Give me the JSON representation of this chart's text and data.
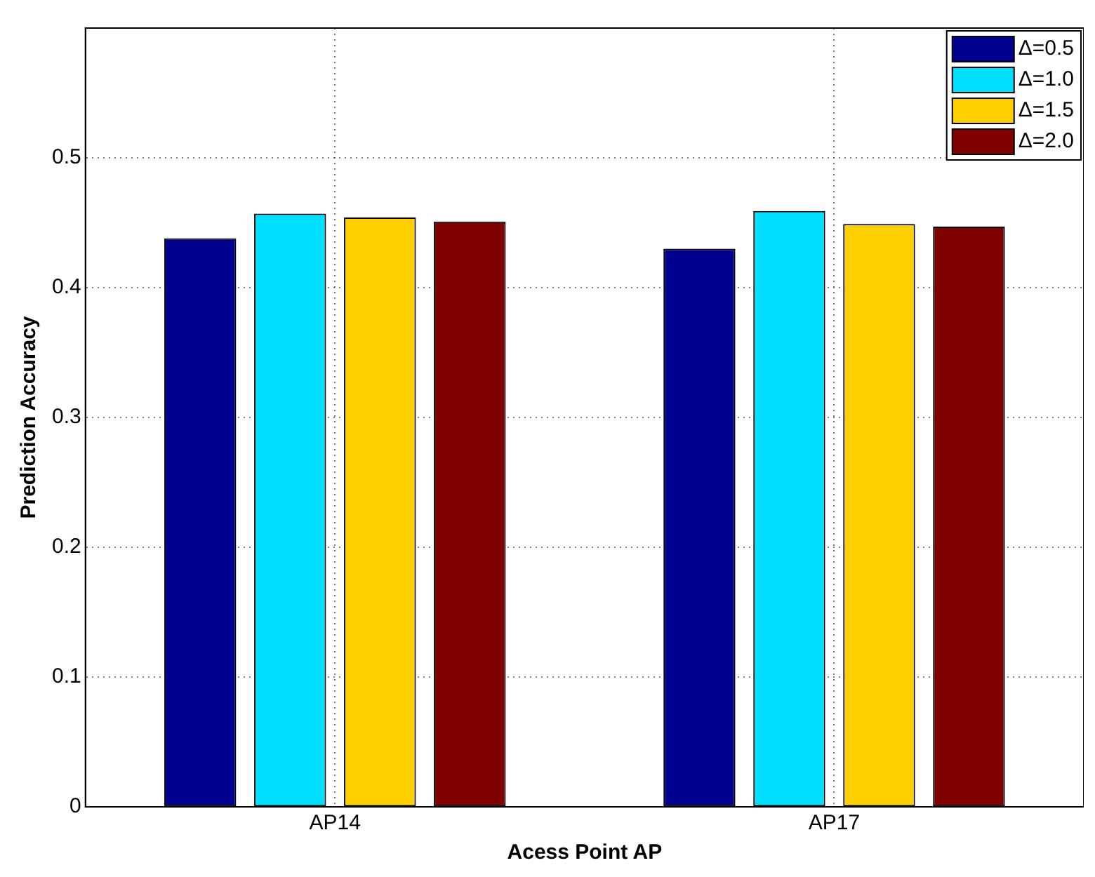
{
  "chart_data": {
    "type": "bar",
    "xlabel": "Acess Point AP",
    "ylabel": "Prediction Accuracy",
    "categories": [
      "AP14",
      "AP17"
    ],
    "series": [
      {
        "name": "Δ=0.5",
        "color": "#00008f",
        "values": [
          0.438,
          0.43
        ]
      },
      {
        "name": "Δ=1.0",
        "color": "#00dfff",
        "values": [
          0.457,
          0.459
        ]
      },
      {
        "name": "Δ=1.5",
        "color": "#ffcf00",
        "values": [
          0.454,
          0.449
        ]
      },
      {
        "name": "Δ=2.0",
        "color": "#800000",
        "values": [
          0.451,
          0.447
        ]
      }
    ],
    "ylim": [
      0,
      0.6
    ],
    "yticks": [
      0,
      0.1,
      0.2,
      0.3,
      0.4,
      0.5
    ],
    "grid": true,
    "legend": "top right"
  }
}
